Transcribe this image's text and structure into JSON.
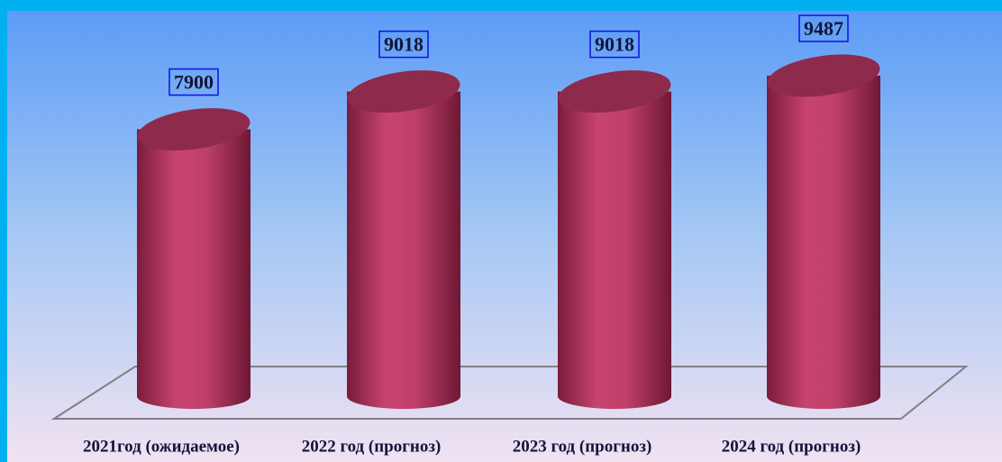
{
  "chart_data": {
    "type": "cylinder",
    "categories": [
      "2021год (ожидаемое)",
      "2022 год (прогноз)",
      "2023 год (прогноз)",
      "2024 год (прогноз)"
    ],
    "values": [
      7900,
      9018,
      9018,
      9487
    ],
    "color": "#c2406a"
  }
}
